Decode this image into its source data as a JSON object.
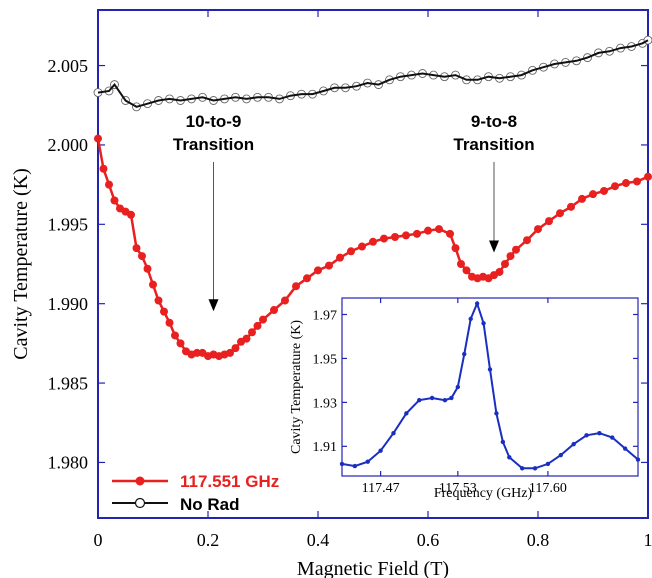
{
  "chart_data": [
    {
      "type": "line",
      "xlabel": "Magnetic Field (T)",
      "ylabel": "Cavity Temperature (K)",
      "xlim": [
        0,
        1
      ],
      "ylim": [
        1.9765,
        2.0085
      ],
      "x_ticks": [
        "0",
        "0.2",
        "0.4",
        "0.6",
        "0.8",
        "1"
      ],
      "x_tick_values": [
        0,
        0.2,
        0.4,
        0.6,
        0.8,
        1.0
      ],
      "y_ticks": [
        "1.980",
        "1.985",
        "1.990",
        "1.995",
        "2.000",
        "2.005"
      ],
      "y_tick_values": [
        1.98,
        1.985,
        1.99,
        1.995,
        2.0,
        2.005
      ],
      "grid": false,
      "legend_position": "bottom-left",
      "series": [
        {
          "name": "117.551 GHz",
          "color": "#e8201f",
          "marker": "filled-circle",
          "x": [
            0.0,
            0.01,
            0.02,
            0.03,
            0.04,
            0.05,
            0.06,
            0.07,
            0.08,
            0.09,
            0.1,
            0.11,
            0.12,
            0.13,
            0.14,
            0.15,
            0.16,
            0.17,
            0.18,
            0.19,
            0.2,
            0.21,
            0.22,
            0.23,
            0.24,
            0.25,
            0.26,
            0.27,
            0.28,
            0.29,
            0.3,
            0.32,
            0.34,
            0.36,
            0.38,
            0.4,
            0.42,
            0.44,
            0.46,
            0.48,
            0.5,
            0.52,
            0.54,
            0.56,
            0.58,
            0.6,
            0.62,
            0.64,
            0.65,
            0.66,
            0.67,
            0.68,
            0.69,
            0.7,
            0.71,
            0.72,
            0.73,
            0.74,
            0.75,
            0.76,
            0.78,
            0.8,
            0.82,
            0.84,
            0.86,
            0.88,
            0.9,
            0.92,
            0.94,
            0.96,
            0.98,
            1.0
          ],
          "y": [
            2.0004,
            1.9985,
            1.9975,
            1.9965,
            1.996,
            1.9958,
            1.9956,
            1.9935,
            1.993,
            1.9922,
            1.9912,
            1.9902,
            1.9895,
            1.9888,
            1.988,
            1.9875,
            1.987,
            1.9868,
            1.9869,
            1.9869,
            1.9867,
            1.9868,
            1.9867,
            1.9868,
            1.9869,
            1.9872,
            1.9876,
            1.9878,
            1.9882,
            1.9886,
            1.989,
            1.9896,
            1.9902,
            1.9911,
            1.9916,
            1.9921,
            1.9924,
            1.9929,
            1.9933,
            1.9936,
            1.9939,
            1.9941,
            1.9942,
            1.9943,
            1.9944,
            1.9946,
            1.9947,
            1.9944,
            1.9935,
            1.9925,
            1.9921,
            1.9917,
            1.9916,
            1.9917,
            1.9916,
            1.9918,
            1.992,
            1.9925,
            1.993,
            1.9934,
            1.994,
            1.9947,
            1.9952,
            1.9957,
            1.9961,
            1.9966,
            1.9969,
            1.9971,
            1.9974,
            1.9976,
            1.9977,
            1.998
          ]
        },
        {
          "name": "No Rad",
          "color": "#111111",
          "marker": "open-circle",
          "x": [
            0.0,
            0.02,
            0.03,
            0.05,
            0.07,
            0.09,
            0.11,
            0.13,
            0.15,
            0.17,
            0.19,
            0.21,
            0.23,
            0.25,
            0.27,
            0.29,
            0.31,
            0.33,
            0.35,
            0.37,
            0.39,
            0.41,
            0.43,
            0.45,
            0.47,
            0.49,
            0.51,
            0.53,
            0.55,
            0.57,
            0.59,
            0.61,
            0.63,
            0.65,
            0.67,
            0.69,
            0.71,
            0.73,
            0.75,
            0.77,
            0.79,
            0.81,
            0.83,
            0.85,
            0.87,
            0.89,
            0.91,
            0.93,
            0.95,
            0.97,
            0.99,
            1.0
          ],
          "y": [
            2.0033,
            2.0034,
            2.0038,
            2.0028,
            2.0024,
            2.0026,
            2.0028,
            2.0029,
            2.0028,
            2.0029,
            2.003,
            2.0028,
            2.0029,
            2.003,
            2.0029,
            2.003,
            2.003,
            2.0029,
            2.0031,
            2.0032,
            2.0032,
            2.0034,
            2.0036,
            2.0036,
            2.0037,
            2.0039,
            2.0038,
            2.0041,
            2.0043,
            2.0044,
            2.0045,
            2.0044,
            2.0043,
            2.0044,
            2.0041,
            2.0041,
            2.0043,
            2.0042,
            2.0043,
            2.0044,
            2.0047,
            2.0049,
            2.0051,
            2.0052,
            2.0053,
            2.0055,
            2.0058,
            2.0059,
            2.0061,
            2.0062,
            2.0064,
            2.0066
          ]
        }
      ],
      "annotations": [
        {
          "line1": "10-to-9",
          "line2": "Transition",
          "x": 0.21,
          "y": 1.9894
        },
        {
          "line1": "9-to-8",
          "line2": "Transition",
          "x": 0.72,
          "y": 1.9931
        }
      ]
    },
    {
      "type": "line",
      "xlabel": "Frequency (GHz)",
      "ylabel": "Cavity Temperature (K)",
      "xlim": [
        117.44,
        117.67
      ],
      "ylim": [
        1.8965,
        1.9775
      ],
      "x_ticks": [
        "117.47",
        "117.53",
        "117.60"
      ],
      "x_tick_values": [
        117.47,
        117.53,
        117.6
      ],
      "y_ticks": [
        "1.91",
        "1.93",
        "1.95",
        "1.97"
      ],
      "y_tick_values": [
        1.91,
        1.93,
        1.95,
        1.97
      ],
      "grid": false,
      "series": [
        {
          "color": "#1a2fc0",
          "marker": "filled-dot",
          "x": [
            117.44,
            117.45,
            117.46,
            117.47,
            117.48,
            117.49,
            117.5,
            117.51,
            117.52,
            117.525,
            117.53,
            117.535,
            117.54,
            117.545,
            117.55,
            117.555,
            117.56,
            117.565,
            117.57,
            117.58,
            117.59,
            117.6,
            117.61,
            117.62,
            117.63,
            117.64,
            117.65,
            117.66,
            117.67
          ],
          "y": [
            1.902,
            1.901,
            1.903,
            1.908,
            1.916,
            1.925,
            1.931,
            1.932,
            1.931,
            1.932,
            1.937,
            1.952,
            1.968,
            1.975,
            1.966,
            1.945,
            1.925,
            1.912,
            1.905,
            1.9,
            1.9,
            1.902,
            1.906,
            1.911,
            1.915,
            1.916,
            1.914,
            1.909,
            1.904
          ]
        }
      ]
    }
  ],
  "colors": {
    "frame": "#2323b4",
    "tick_label": "#000000"
  }
}
